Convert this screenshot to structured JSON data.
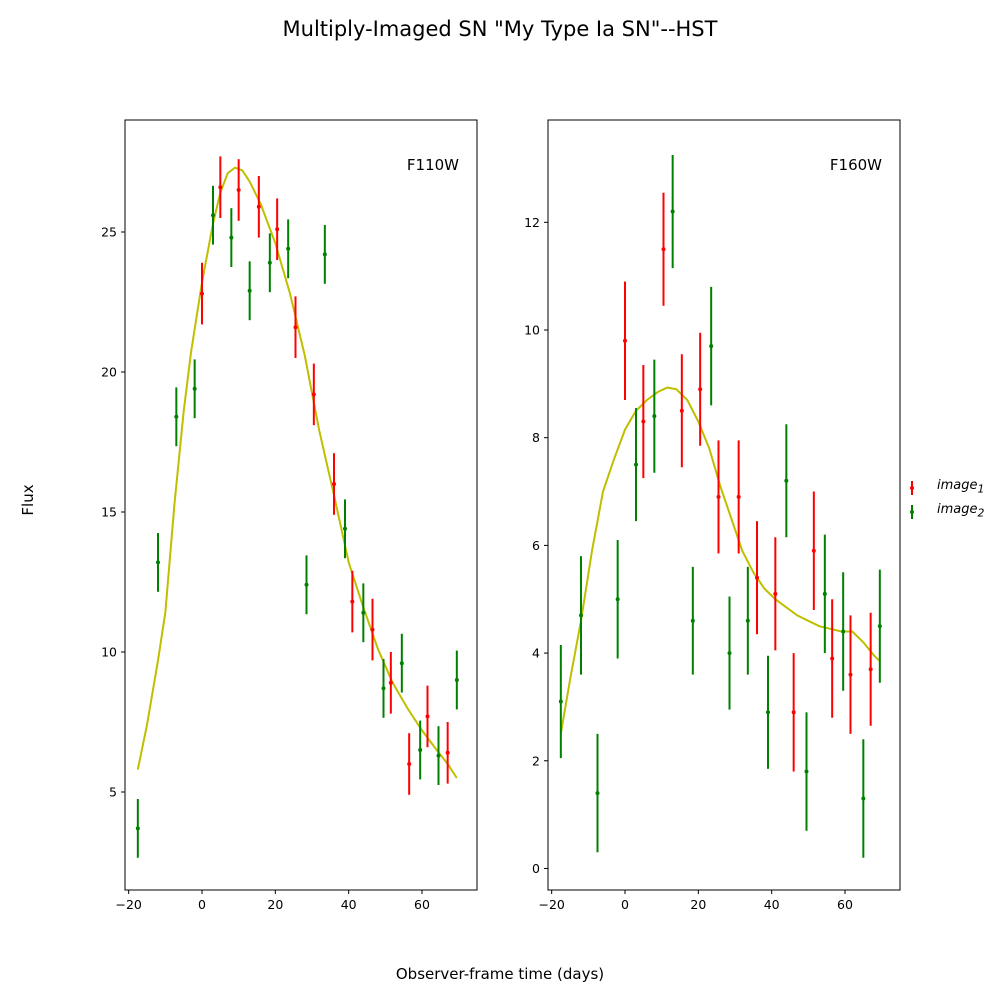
{
  "figure": {
    "title": "Multiply-Imaged SN \"My Type Ia SN\"--HST",
    "xlabel": "Observer-frame time (days)",
    "ylabel": "Flux"
  },
  "legend": {
    "placement": "right",
    "entries": [
      {
        "label": "image",
        "subscript": "1",
        "color": "#ff0000"
      },
      {
        "label": "image",
        "subscript": "2",
        "color": "#008000"
      }
    ]
  },
  "colors": {
    "image_1": "#ff0000",
    "image_2": "#008000",
    "model": "#bfbf00"
  },
  "chart_data": [
    {
      "type": "scatter",
      "panel_label": "F110W",
      "xlim": [
        -21,
        75
      ],
      "ylim": [
        1.5,
        29
      ],
      "xticks": [
        -20,
        0,
        20,
        40,
        60
      ],
      "yticks": [
        5,
        10,
        15,
        20,
        25
      ],
      "grid": false,
      "series": [
        {
          "name": "image_1",
          "points": [
            {
              "x": 0,
              "y": 22.8,
              "err": 1.1
            },
            {
              "x": 5,
              "y": 26.6,
              "err": 1.1
            },
            {
              "x": 10,
              "y": 26.5,
              "err": 1.1
            },
            {
              "x": 15.5,
              "y": 25.9,
              "err": 1.1
            },
            {
              "x": 20.5,
              "y": 25.1,
              "err": 1.1
            },
            {
              "x": 25.5,
              "y": 21.6,
              "err": 1.1
            },
            {
              "x": 30.5,
              "y": 19.2,
              "err": 1.1
            },
            {
              "x": 36,
              "y": 16.0,
              "err": 1.1
            },
            {
              "x": 41,
              "y": 11.8,
              "err": 1.1
            },
            {
              "x": 46.5,
              "y": 10.8,
              "err": 1.1
            },
            {
              "x": 51.5,
              "y": 8.9,
              "err": 1.1
            },
            {
              "x": 56.5,
              "y": 6.0,
              "err": 1.1
            },
            {
              "x": 61.5,
              "y": 7.7,
              "err": 1.1
            },
            {
              "x": 67,
              "y": 6.4,
              "err": 1.1
            }
          ]
        },
        {
          "name": "image_2",
          "points": [
            {
              "x": -17.5,
              "y": 3.7,
              "err": 1.05
            },
            {
              "x": -12,
              "y": 13.2,
              "err": 1.05
            },
            {
              "x": -7,
              "y": 18.4,
              "err": 1.05
            },
            {
              "x": -2,
              "y": 19.4,
              "err": 1.05
            },
            {
              "x": 3,
              "y": 25.6,
              "err": 1.05
            },
            {
              "x": 8,
              "y": 24.8,
              "err": 1.05
            },
            {
              "x": 13,
              "y": 22.9,
              "err": 1.05
            },
            {
              "x": 18.5,
              "y": 23.9,
              "err": 1.05
            },
            {
              "x": 23.5,
              "y": 24.4,
              "err": 1.05
            },
            {
              "x": 28.5,
              "y": 12.4,
              "err": 1.05
            },
            {
              "x": 33.5,
              "y": 24.2,
              "err": 1.05
            },
            {
              "x": 39,
              "y": 14.4,
              "err": 1.05
            },
            {
              "x": 44,
              "y": 11.4,
              "err": 1.05
            },
            {
              "x": 49.5,
              "y": 8.7,
              "err": 1.05
            },
            {
              "x": 54.5,
              "y": 9.6,
              "err": 1.05
            },
            {
              "x": 59.5,
              "y": 6.5,
              "err": 1.05
            },
            {
              "x": 64.5,
              "y": 6.3,
              "err": 1.05
            },
            {
              "x": 69.5,
              "y": 9.0,
              "err": 1.05
            }
          ]
        },
        {
          "name": "model",
          "points": [
            {
              "x": -17.5,
              "y": 5.8
            },
            {
              "x": -15,
              "y": 7.4
            },
            {
              "x": -12,
              "y": 9.7
            },
            {
              "x": -10,
              "y": 11.4
            },
            {
              "x": -7.5,
              "y": 15.3
            },
            {
              "x": -5,
              "y": 18.6
            },
            {
              "x": -3,
              "y": 20.7
            },
            {
              "x": 0,
              "y": 23.2
            },
            {
              "x": 3,
              "y": 25.3
            },
            {
              "x": 5,
              "y": 26.4
            },
            {
              "x": 7,
              "y": 27.1
            },
            {
              "x": 9,
              "y": 27.3
            },
            {
              "x": 11,
              "y": 27.2
            },
            {
              "x": 13,
              "y": 26.8
            },
            {
              "x": 16,
              "y": 26.0
            },
            {
              "x": 20,
              "y": 24.6
            },
            {
              "x": 24,
              "y": 22.8
            },
            {
              "x": 28,
              "y": 20.6
            },
            {
              "x": 32,
              "y": 17.9
            },
            {
              "x": 36,
              "y": 15.6
            },
            {
              "x": 40,
              "y": 13.2
            },
            {
              "x": 44,
              "y": 11.6
            },
            {
              "x": 48,
              "y": 10.1
            },
            {
              "x": 52,
              "y": 8.9
            },
            {
              "x": 56,
              "y": 8.0
            },
            {
              "x": 60,
              "y": 7.2
            },
            {
              "x": 64,
              "y": 6.5
            },
            {
              "x": 67,
              "y": 6.0
            },
            {
              "x": 69.5,
              "y": 5.5
            }
          ]
        }
      ]
    },
    {
      "type": "scatter",
      "panel_label": "F160W",
      "xlim": [
        -21,
        75
      ],
      "ylim": [
        -0.4,
        13.9
      ],
      "xticks": [
        -20,
        0,
        20,
        40,
        60
      ],
      "yticks": [
        0,
        2,
        4,
        6,
        8,
        10,
        12
      ],
      "grid": false,
      "series": [
        {
          "name": "image_1",
          "points": [
            {
              "x": 0,
              "y": 9.8,
              "err": 1.1
            },
            {
              "x": 5,
              "y": 8.3,
              "err": 1.05
            },
            {
              "x": 10.5,
              "y": 11.5,
              "err": 1.05
            },
            {
              "x": 15.5,
              "y": 8.5,
              "err": 1.05
            },
            {
              "x": 20.5,
              "y": 8.9,
              "err": 1.05
            },
            {
              "x": 25.5,
              "y": 6.9,
              "err": 1.05
            },
            {
              "x": 31,
              "y": 6.9,
              "err": 1.05
            },
            {
              "x": 36,
              "y": 5.4,
              "err": 1.05
            },
            {
              "x": 41,
              "y": 5.1,
              "err": 1.05
            },
            {
              "x": 46,
              "y": 2.9,
              "err": 1.1
            },
            {
              "x": 51.5,
              "y": 5.9,
              "err": 1.1
            },
            {
              "x": 56.5,
              "y": 3.9,
              "err": 1.1
            },
            {
              "x": 61.5,
              "y": 3.6,
              "err": 1.1
            },
            {
              "x": 67,
              "y": 3.7,
              "err": 1.05
            }
          ]
        },
        {
          "name": "image_2",
          "points": [
            {
              "x": -17.5,
              "y": 3.1,
              "err": 1.05
            },
            {
              "x": -12,
              "y": 4.7,
              "err": 1.1
            },
            {
              "x": -7.5,
              "y": 1.4,
              "err": 1.1
            },
            {
              "x": -2,
              "y": 5.0,
              "err": 1.1
            },
            {
              "x": 3,
              "y": 7.5,
              "err": 1.05
            },
            {
              "x": 8,
              "y": 8.4,
              "err": 1.05
            },
            {
              "x": 13,
              "y": 12.2,
              "err": 1.05
            },
            {
              "x": 18.5,
              "y": 4.6,
              "err": 1.0
            },
            {
              "x": 23.5,
              "y": 9.7,
              "err": 1.1
            },
            {
              "x": 28.5,
              "y": 4.0,
              "err": 1.05
            },
            {
              "x": 33.5,
              "y": 4.6,
              "err": 1.0
            },
            {
              "x": 39,
              "y": 2.9,
              "err": 1.05
            },
            {
              "x": 44,
              "y": 7.2,
              "err": 1.05
            },
            {
              "x": 49.5,
              "y": 1.8,
              "err": 1.1
            },
            {
              "x": 54.5,
              "y": 5.1,
              "err": 1.1
            },
            {
              "x": 59.5,
              "y": 4.4,
              "err": 1.1
            },
            {
              "x": 65,
              "y": 1.3,
              "err": 1.1
            },
            {
              "x": 69.5,
              "y": 4.5,
              "err": 1.05
            }
          ]
        },
        {
          "name": "model",
          "points": [
            {
              "x": -17.5,
              "y": 2.5
            },
            {
              "x": -15,
              "y": 3.5
            },
            {
              "x": -12,
              "y": 4.6
            },
            {
              "x": -9,
              "y": 5.9
            },
            {
              "x": -6,
              "y": 7.0
            },
            {
              "x": -3,
              "y": 7.6
            },
            {
              "x": 0,
              "y": 8.15
            },
            {
              "x": 3,
              "y": 8.5
            },
            {
              "x": 6,
              "y": 8.7
            },
            {
              "x": 9,
              "y": 8.85
            },
            {
              "x": 11.5,
              "y": 8.93
            },
            {
              "x": 14,
              "y": 8.9
            },
            {
              "x": 17,
              "y": 8.7
            },
            {
              "x": 20,
              "y": 8.3
            },
            {
              "x": 23,
              "y": 7.8
            },
            {
              "x": 26,
              "y": 7.1
            },
            {
              "x": 29,
              "y": 6.5
            },
            {
              "x": 32,
              "y": 5.9
            },
            {
              "x": 35,
              "y": 5.5
            },
            {
              "x": 38,
              "y": 5.2
            },
            {
              "x": 41,
              "y": 5.0
            },
            {
              "x": 44,
              "y": 4.85
            },
            {
              "x": 47,
              "y": 4.7
            },
            {
              "x": 50,
              "y": 4.6
            },
            {
              "x": 53,
              "y": 4.5
            },
            {
              "x": 56,
              "y": 4.45
            },
            {
              "x": 59,
              "y": 4.4
            },
            {
              "x": 62,
              "y": 4.4
            },
            {
              "x": 65,
              "y": 4.2
            },
            {
              "x": 68,
              "y": 3.95
            },
            {
              "x": 69.5,
              "y": 3.85
            }
          ]
        }
      ]
    }
  ]
}
